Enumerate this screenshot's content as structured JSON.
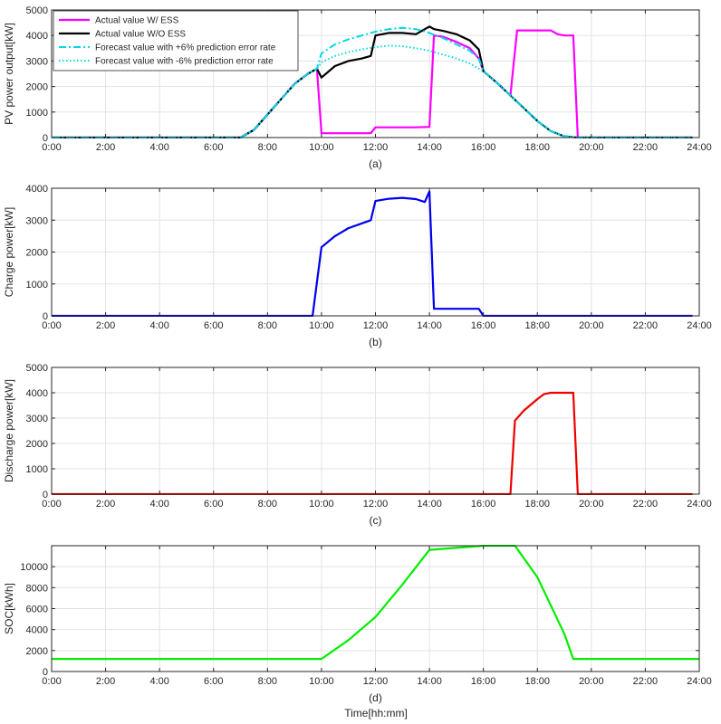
{
  "figure": {
    "xlabel": "Time[hh:mm]"
  },
  "chart_data": [
    {
      "type": "line",
      "panel_label": "(a)",
      "ylabel": "PV power output[kW]",
      "xlim": [
        0,
        24
      ],
      "ylim": [
        0,
        5000
      ],
      "xticks": [
        0,
        2,
        4,
        6,
        8,
        10,
        12,
        14,
        16,
        18,
        20,
        22,
        24
      ],
      "xtick_labels": [
        "0:00",
        "2:00",
        "4:00",
        "6:00",
        "8:00",
        "10:00",
        "12:00",
        "14:00",
        "16:00",
        "18:00",
        "20:00",
        "22:00",
        "24:00"
      ],
      "yticks": [
        0,
        1000,
        2000,
        3000,
        4000,
        5000
      ],
      "grid": true,
      "legend": "top-left",
      "series": [
        {
          "name": "Actual value W/ ESS",
          "color": "#ff00ff",
          "dash": "solid",
          "width": 2.2,
          "x": [
            0,
            7,
            7.5,
            8,
            8.5,
            9,
            9.5,
            9.83,
            10,
            10.5,
            11,
            11.5,
            11.83,
            12,
            12.5,
            13,
            13.5,
            14,
            14.17,
            14.5,
            15,
            15.5,
            15.83,
            16,
            16.5,
            17,
            17.25,
            17.5,
            18,
            18.5,
            18.75,
            19,
            19.33,
            19.5,
            20,
            23.75
          ],
          "y": [
            0,
            0,
            300,
            900,
            1500,
            2100,
            2500,
            2700,
            170,
            170,
            170,
            170,
            170,
            400,
            400,
            400,
            400,
            420,
            4000,
            3950,
            3750,
            3500,
            3100,
            2600,
            2150,
            1650,
            4200,
            4200,
            4200,
            4200,
            4050,
            4000,
            4000,
            0,
            0,
            0
          ]
        },
        {
          "name": "Actual value W/O ESS",
          "color": "#000000",
          "dash": "solid",
          "width": 2.2,
          "x": [
            0,
            7,
            7.5,
            8,
            8.5,
            9,
            9.5,
            9.83,
            10,
            10.5,
            11,
            11.5,
            11.83,
            12,
            12.5,
            13,
            13.5,
            14,
            14.17,
            14.5,
            15,
            15.5,
            15.83,
            16,
            16.5,
            17,
            17.5,
            18,
            18.5,
            19,
            19.5,
            20,
            23.75
          ],
          "y": [
            0,
            0,
            300,
            900,
            1500,
            2100,
            2500,
            2700,
            2350,
            2800,
            3000,
            3100,
            3200,
            4000,
            4100,
            4100,
            4050,
            4350,
            4250,
            4180,
            4050,
            3800,
            3450,
            2600,
            2150,
            1650,
            1150,
            650,
            250,
            50,
            0,
            0,
            0
          ]
        },
        {
          "name": "Forecast value with +6% prediction error rate",
          "color": "#00d8e6",
          "dash": "8,3,2,3",
          "width": 2.0,
          "x": [
            0,
            7,
            7.5,
            8,
            8.5,
            9,
            9.5,
            9.83,
            10,
            10.5,
            11,
            11.5,
            12,
            12.5,
            13,
            13.5,
            14,
            14.5,
            15,
            15.5,
            15.83,
            16,
            16.5,
            17,
            17.5,
            18,
            18.5,
            19,
            19.5,
            20,
            23.75
          ],
          "y": [
            0,
            0,
            300,
            900,
            1500,
            2100,
            2500,
            2700,
            3300,
            3650,
            3850,
            4000,
            4150,
            4250,
            4300,
            4250,
            4100,
            3900,
            3650,
            3400,
            3100,
            2600,
            2150,
            1650,
            1150,
            650,
            250,
            50,
            0,
            0,
            0
          ]
        },
        {
          "name": "Forecast value with -6% prediction error rate",
          "color": "#00d8e6",
          "dash": "1.5,2.5",
          "width": 2.0,
          "x": [
            0,
            7,
            7.5,
            8,
            8.5,
            9,
            9.5,
            9.83,
            10,
            10.5,
            11,
            11.5,
            12,
            12.5,
            13,
            13.5,
            14,
            14.5,
            15,
            15.5,
            15.83,
            16,
            16.5,
            17,
            17.5,
            18,
            18.5,
            19,
            19.5,
            20,
            23.75
          ],
          "y": [
            0,
            0,
            300,
            900,
            1500,
            2100,
            2500,
            2700,
            2950,
            3200,
            3350,
            3450,
            3550,
            3600,
            3580,
            3500,
            3400,
            3250,
            3100,
            2900,
            2700,
            2600,
            2150,
            1650,
            1150,
            650,
            250,
            50,
            0,
            0,
            0
          ]
        }
      ]
    },
    {
      "type": "line",
      "panel_label": "(b)",
      "ylabel": "Charge power[kW]",
      "xlim": [
        0,
        24
      ],
      "ylim": [
        0,
        4000
      ],
      "xticks": [
        0,
        2,
        4,
        6,
        8,
        10,
        12,
        14,
        16,
        18,
        20,
        22,
        24
      ],
      "xtick_labels": [
        "0:00",
        "2:00",
        "4:00",
        "6:00",
        "8:00",
        "10:00",
        "12:00",
        "14:00",
        "16:00",
        "18:00",
        "20:00",
        "22:00",
        "24:00"
      ],
      "yticks": [
        0,
        1000,
        2000,
        3000,
        4000
      ],
      "grid": true,
      "series": [
        {
          "color": "#0000ee",
          "dash": "solid",
          "width": 2.2,
          "x": [
            0,
            9.67,
            10,
            10.5,
            11,
            11.5,
            11.83,
            12,
            12.5,
            13,
            13.5,
            13.83,
            14,
            14.17,
            14.5,
            15,
            15.5,
            15.83,
            16,
            23.75
          ],
          "y": [
            0,
            0,
            2150,
            2500,
            2750,
            2900,
            3000,
            3600,
            3670,
            3700,
            3660,
            3570,
            3900,
            220,
            220,
            220,
            220,
            220,
            0,
            0
          ]
        }
      ]
    },
    {
      "type": "line",
      "panel_label": "(c)",
      "ylabel": "Discharge power[kW]",
      "xlim": [
        0,
        24
      ],
      "ylim": [
        0,
        5000
      ],
      "xticks": [
        0,
        2,
        4,
        6,
        8,
        10,
        12,
        14,
        16,
        18,
        20,
        22,
        24
      ],
      "xtick_labels": [
        "0:00",
        "2:00",
        "4:00",
        "6:00",
        "8:00",
        "10:00",
        "12:00",
        "14:00",
        "16:00",
        "18:00",
        "20:00",
        "22:00",
        "24:00"
      ],
      "yticks": [
        0,
        1000,
        2000,
        3000,
        4000,
        5000
      ],
      "grid": true,
      "series": [
        {
          "color": "#ee0000",
          "dash": "solid",
          "width": 2.2,
          "x": [
            0,
            17,
            17.17,
            17.5,
            18,
            18.25,
            18.5,
            19,
            19.33,
            19.5,
            23.75
          ],
          "y": [
            0,
            0,
            2900,
            3300,
            3750,
            3950,
            4000,
            4000,
            4000,
            0,
            0
          ]
        }
      ]
    },
    {
      "type": "line",
      "panel_label": "(d)",
      "ylabel": "SOC[kWh]",
      "xlim": [
        0,
        24
      ],
      "ylim": [
        0,
        12000
      ],
      "xticks": [
        0,
        2,
        4,
        6,
        8,
        10,
        12,
        14,
        16,
        18,
        20,
        22,
        24
      ],
      "xtick_labels": [
        "0:00",
        "2:00",
        "4:00",
        "6:00",
        "8:00",
        "10:00",
        "12:00",
        "14:00",
        "16:00",
        "18:00",
        "20:00",
        "22:00",
        "24:00"
      ],
      "yticks": [
        0,
        2000,
        4000,
        6000,
        8000,
        10000
      ],
      "grid": true,
      "series": [
        {
          "color": "#00ee00",
          "dash": "solid",
          "width": 2.2,
          "x": [
            0,
            10,
            11,
            12,
            13,
            14,
            16,
            17.17,
            18,
            19,
            19.33,
            24
          ],
          "y": [
            1200,
            1200,
            3000,
            5200,
            8300,
            11600,
            12000,
            12000,
            9000,
            3600,
            1200,
            1200
          ]
        }
      ]
    }
  ]
}
